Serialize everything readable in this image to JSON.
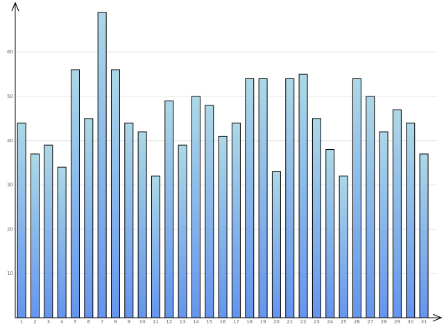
{
  "chart_data": {
    "type": "bar",
    "categories": [
      "1",
      "2",
      "3",
      "4",
      "5",
      "6",
      "7",
      "8",
      "9",
      "10",
      "11",
      "12",
      "13",
      "14",
      "15",
      "16",
      "17",
      "18",
      "19",
      "20",
      "21",
      "22",
      "23",
      "24",
      "25",
      "26",
      "27",
      "28",
      "29",
      "30",
      "31"
    ],
    "values": [
      44,
      37,
      39,
      34,
      56,
      45,
      69,
      56,
      44,
      42,
      32,
      49,
      39,
      50,
      48,
      41,
      44,
      54,
      54,
      33,
      54,
      55,
      45,
      38,
      32,
      54,
      50,
      42,
      47,
      44,
      37
    ],
    "color": [
      "#add8e6",
      "#6495ed"
    ],
    "ylim": [
      0,
      71
    ],
    "yticks": [
      10,
      20,
      30,
      40,
      50,
      60
    ],
    "grid": true
  }
}
